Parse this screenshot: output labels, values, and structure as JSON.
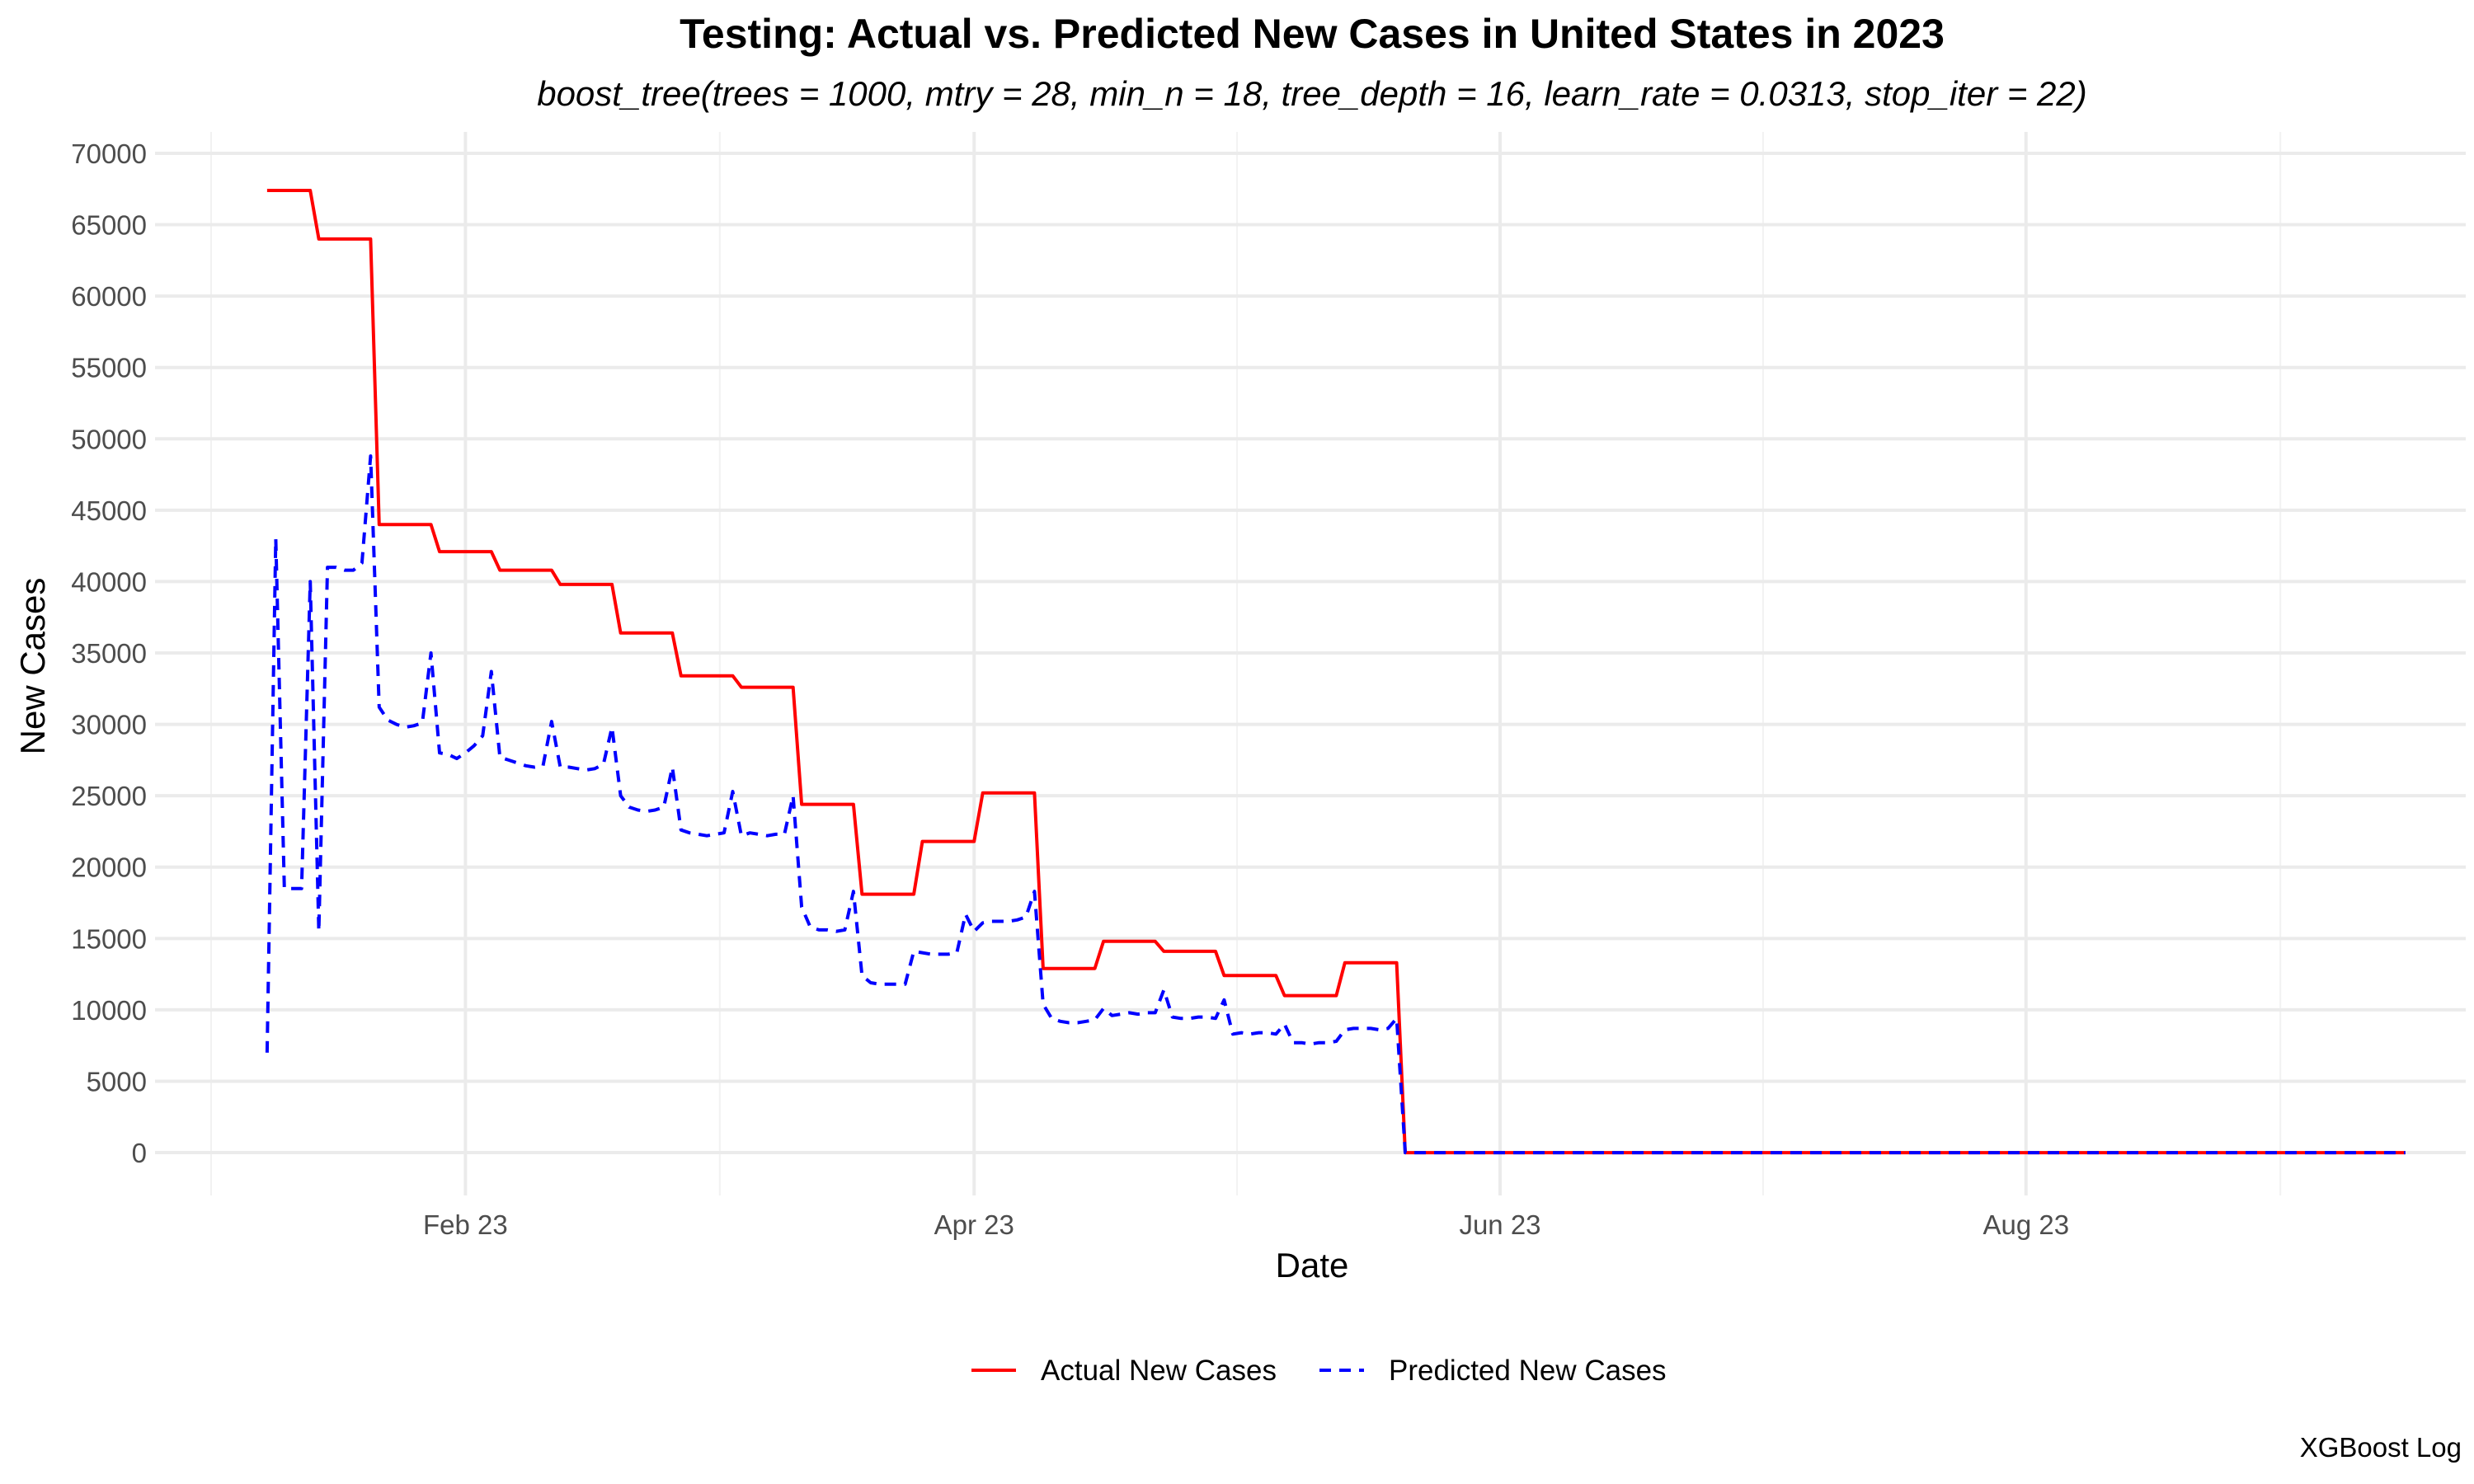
{
  "chart_data": {
    "type": "line",
    "title": "Testing: Actual vs. Predicted New Cases in United States in 2023",
    "subtitle": "boost_tree(trees = 1000, mtry = 28, min_n = 18, tree_depth = 16, learn_rate = 0.0313, stop_iter = 22)",
    "xlabel": "Date",
    "ylabel": "New Cases",
    "caption": "XGBoost Log",
    "x_ticks": [
      {
        "label": "Feb 23",
        "date": "2023-02-01"
      },
      {
        "label": "Apr 23",
        "date": "2023-04-01"
      },
      {
        "label": "Jun 23",
        "date": "2023-06-01"
      },
      {
        "label": "Aug 23",
        "date": "2023-08-01"
      }
    ],
    "y_ticks": [
      0,
      5000,
      10000,
      15000,
      20000,
      25000,
      30000,
      35000,
      40000,
      45000,
      50000,
      55000,
      60000,
      65000,
      70000
    ],
    "xlim": [
      "2022-12-27",
      "2023-09-21"
    ],
    "ylim": [
      -3000,
      71500
    ],
    "grid": true,
    "legend_position": "bottom",
    "series": [
      {
        "name": "Actual New Cases",
        "color": "#ff0000",
        "dash": "solid",
        "points": [
          [
            "2023-01-09",
            67400
          ],
          [
            "2023-01-14",
            67400
          ],
          [
            "2023-01-15",
            64000
          ],
          [
            "2023-01-21",
            64000
          ],
          [
            "2023-01-22",
            44000
          ],
          [
            "2023-01-28",
            44000
          ],
          [
            "2023-01-29",
            42100
          ],
          [
            "2023-02-04",
            42100
          ],
          [
            "2023-02-05",
            40800
          ],
          [
            "2023-02-11",
            40800
          ],
          [
            "2023-02-12",
            39800
          ],
          [
            "2023-02-18",
            39800
          ],
          [
            "2023-02-19",
            36400
          ],
          [
            "2023-02-25",
            36400
          ],
          [
            "2023-02-26",
            33400
          ],
          [
            "2023-03-04",
            33400
          ],
          [
            "2023-03-05",
            32600
          ],
          [
            "2023-03-11",
            32600
          ],
          [
            "2023-03-12",
            24400
          ],
          [
            "2023-03-18",
            24400
          ],
          [
            "2023-03-19",
            18100
          ],
          [
            "2023-03-25",
            18100
          ],
          [
            "2023-03-26",
            21800
          ],
          [
            "2023-04-01",
            21800
          ],
          [
            "2023-04-02",
            25200
          ],
          [
            "2023-04-08",
            25200
          ],
          [
            "2023-04-09",
            12900
          ],
          [
            "2023-04-15",
            12900
          ],
          [
            "2023-04-16",
            14800
          ],
          [
            "2023-04-22",
            14800
          ],
          [
            "2023-04-23",
            14100
          ],
          [
            "2023-04-29",
            14100
          ],
          [
            "2023-04-30",
            12400
          ],
          [
            "2023-05-06",
            12400
          ],
          [
            "2023-05-07",
            11000
          ],
          [
            "2023-05-13",
            11000
          ],
          [
            "2023-05-14",
            13300
          ],
          [
            "2023-05-20",
            13300
          ],
          [
            "2023-05-21",
            0
          ],
          [
            "2023-09-14",
            0
          ]
        ]
      },
      {
        "name": "Predicted New Cases",
        "color": "#0000ff",
        "dash": "dashed",
        "points": [
          [
            "2023-01-09",
            7000
          ],
          [
            "2023-01-10",
            43000
          ],
          [
            "2023-01-11",
            18500
          ],
          [
            "2023-01-12",
            18500
          ],
          [
            "2023-01-13",
            18500
          ],
          [
            "2023-01-14",
            40000
          ],
          [
            "2023-01-15",
            15500
          ],
          [
            "2023-01-16",
            41000
          ],
          [
            "2023-01-17",
            41000
          ],
          [
            "2023-01-18",
            40800
          ],
          [
            "2023-01-19",
            40800
          ],
          [
            "2023-01-20",
            41300
          ],
          [
            "2023-01-21",
            48800
          ],
          [
            "2023-01-22",
            31200
          ],
          [
            "2023-01-23",
            30300
          ],
          [
            "2023-01-24",
            30000
          ],
          [
            "2023-01-25",
            29800
          ],
          [
            "2023-01-26",
            29900
          ],
          [
            "2023-01-27",
            30100
          ],
          [
            "2023-01-28",
            35000
          ],
          [
            "2023-01-29",
            28000
          ],
          [
            "2023-01-30",
            27900
          ],
          [
            "2023-01-31",
            27600
          ],
          [
            "2023-02-01",
            28000
          ],
          [
            "2023-02-02",
            28500
          ],
          [
            "2023-02-03",
            29200
          ],
          [
            "2023-02-04",
            33700
          ],
          [
            "2023-02-05",
            27700
          ],
          [
            "2023-02-06",
            27500
          ],
          [
            "2023-02-07",
            27300
          ],
          [
            "2023-02-08",
            27100
          ],
          [
            "2023-02-09",
            27000
          ],
          [
            "2023-02-10",
            27100
          ],
          [
            "2023-02-11",
            30200
          ],
          [
            "2023-02-12",
            27000
          ],
          [
            "2023-02-13",
            27000
          ],
          [
            "2023-02-14",
            26900
          ],
          [
            "2023-02-15",
            26800
          ],
          [
            "2023-02-16",
            26900
          ],
          [
            "2023-02-17",
            27200
          ],
          [
            "2023-02-18",
            29800
          ],
          [
            "2023-02-19",
            25000
          ],
          [
            "2023-02-20",
            24200
          ],
          [
            "2023-02-21",
            24000
          ],
          [
            "2023-02-22",
            23900
          ],
          [
            "2023-02-23",
            24000
          ],
          [
            "2023-02-24",
            24200
          ],
          [
            "2023-02-25",
            27000
          ],
          [
            "2023-02-26",
            22600
          ],
          [
            "2023-02-27",
            22400
          ],
          [
            "2023-02-28",
            22300
          ],
          [
            "2023-03-01",
            22200
          ],
          [
            "2023-03-02",
            22300
          ],
          [
            "2023-03-03",
            22400
          ],
          [
            "2023-03-04",
            25300
          ],
          [
            "2023-03-05",
            22200
          ],
          [
            "2023-03-06",
            22400
          ],
          [
            "2023-03-07",
            22300
          ],
          [
            "2023-03-08",
            22200
          ],
          [
            "2023-03-09",
            22300
          ],
          [
            "2023-03-10",
            22300
          ],
          [
            "2023-03-11",
            25000
          ],
          [
            "2023-03-12",
            17200
          ],
          [
            "2023-03-13",
            15800
          ],
          [
            "2023-03-14",
            15600
          ],
          [
            "2023-03-15",
            15600
          ],
          [
            "2023-03-16",
            15500
          ],
          [
            "2023-03-17",
            15600
          ],
          [
            "2023-03-18",
            18300
          ],
          [
            "2023-03-19",
            12400
          ],
          [
            "2023-03-20",
            11900
          ],
          [
            "2023-03-21",
            11800
          ],
          [
            "2023-03-22",
            11800
          ],
          [
            "2023-03-23",
            11800
          ],
          [
            "2023-03-24",
            11800
          ],
          [
            "2023-03-25",
            14100
          ],
          [
            "2023-03-26",
            14000
          ],
          [
            "2023-03-27",
            13900
          ],
          [
            "2023-03-28",
            13900
          ],
          [
            "2023-03-29",
            13900
          ],
          [
            "2023-03-30",
            14000
          ],
          [
            "2023-03-31",
            16700
          ],
          [
            "2023-04-01",
            15500
          ],
          [
            "2023-04-02",
            16100
          ],
          [
            "2023-04-03",
            16200
          ],
          [
            "2023-04-04",
            16200
          ],
          [
            "2023-04-05",
            16200
          ],
          [
            "2023-04-06",
            16300
          ],
          [
            "2023-04-07",
            16500
          ],
          [
            "2023-04-08",
            18300
          ],
          [
            "2023-04-09",
            10400
          ],
          [
            "2023-04-10",
            9400
          ],
          [
            "2023-04-11",
            9200
          ],
          [
            "2023-04-12",
            9100
          ],
          [
            "2023-04-13",
            9100
          ],
          [
            "2023-04-14",
            9200
          ],
          [
            "2023-04-15",
            9300
          ],
          [
            "2023-04-16",
            10100
          ],
          [
            "2023-04-17",
            9600
          ],
          [
            "2023-04-18",
            9700
          ],
          [
            "2023-04-19",
            9800
          ],
          [
            "2023-04-20",
            9700
          ],
          [
            "2023-04-21",
            9800
          ],
          [
            "2023-04-22",
            9800
          ],
          [
            "2023-04-23",
            11400
          ],
          [
            "2023-04-24",
            9500
          ],
          [
            "2023-04-25",
            9400
          ],
          [
            "2023-04-26",
            9400
          ],
          [
            "2023-04-27",
            9500
          ],
          [
            "2023-04-28",
            9500
          ],
          [
            "2023-04-29",
            9400
          ],
          [
            "2023-04-30",
            10700
          ],
          [
            "2023-05-01",
            8300
          ],
          [
            "2023-05-02",
            8400
          ],
          [
            "2023-05-03",
            8300
          ],
          [
            "2023-05-04",
            8400
          ],
          [
            "2023-05-05",
            8400
          ],
          [
            "2023-05-06",
            8300
          ],
          [
            "2023-05-07",
            9000
          ],
          [
            "2023-05-08",
            7700
          ],
          [
            "2023-05-09",
            7700
          ],
          [
            "2023-05-10",
            7600
          ],
          [
            "2023-05-11",
            7700
          ],
          [
            "2023-05-12",
            7700
          ],
          [
            "2023-05-13",
            7800
          ],
          [
            "2023-05-14",
            8600
          ],
          [
            "2023-05-15",
            8700
          ],
          [
            "2023-05-16",
            8700
          ],
          [
            "2023-05-17",
            8700
          ],
          [
            "2023-05-18",
            8600
          ],
          [
            "2023-05-19",
            8700
          ],
          [
            "2023-05-20",
            9400
          ],
          [
            "2023-05-21",
            0
          ],
          [
            "2023-09-14",
            0
          ]
        ]
      }
    ]
  }
}
